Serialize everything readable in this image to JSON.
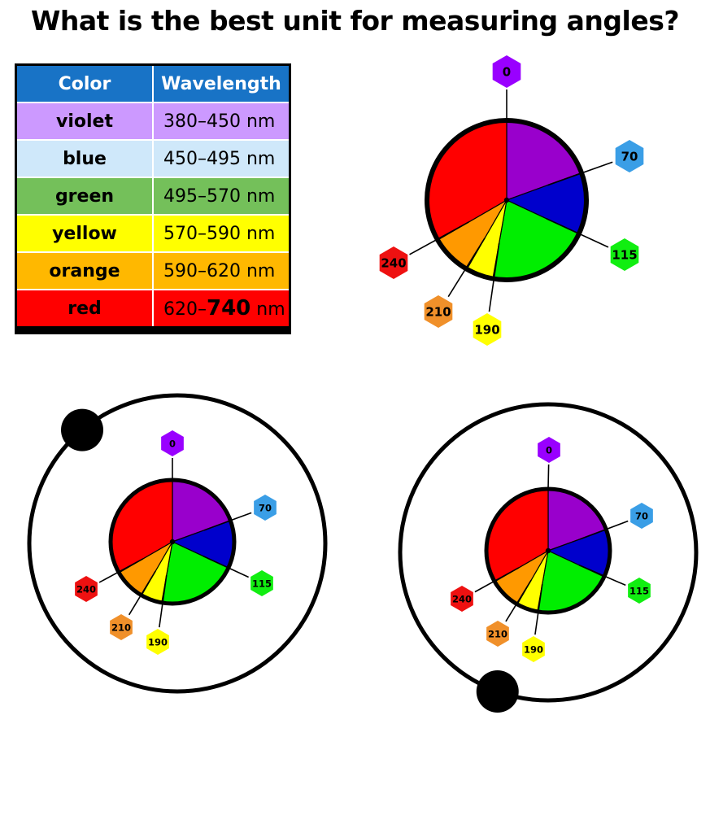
{
  "title": "What is the best unit for measuring angles?",
  "table": {
    "headers": [
      "Color",
      "Wavelength"
    ],
    "rows": [
      {
        "color": "violet",
        "wave": "380–450",
        "wave_end": "",
        "unit": " nm",
        "bg": "#cc99ff"
      },
      {
        "color": "blue",
        "wave": "450–495",
        "wave_end": "",
        "unit": " nm",
        "bg": "#cfe8fa"
      },
      {
        "color": "green",
        "wave": "495–570",
        "wave_end": "",
        "unit": " nm",
        "bg": "#74c05a"
      },
      {
        "color": "yellow",
        "wave": "570–590",
        "wave_end": "",
        "unit": " nm",
        "bg": "#ffff00"
      },
      {
        "color": "orange",
        "wave": "590–620",
        "wave_end": "",
        "unit": " nm",
        "bg": "#ffb800"
      },
      {
        "color": "red",
        "wave": "620–",
        "wave_end": "740",
        "unit": " nm",
        "bg": "#ff0000"
      }
    ]
  },
  "wheel": {
    "sectors": [
      {
        "name": "violet",
        "label": "0",
        "color": "#9900cc",
        "start": 0,
        "end": 70
      },
      {
        "name": "blue",
        "label": "70",
        "color": "#0000cc",
        "start": 70,
        "end": 115
      },
      {
        "name": "green",
        "label": "115",
        "color": "#00ee00",
        "start": 115,
        "end": 190
      },
      {
        "name": "yellow",
        "label": "190",
        "color": "#ffff00",
        "start": 190,
        "end": 210
      },
      {
        "name": "orange",
        "label": "210",
        "color": "#ff9900",
        "start": 210,
        "end": 240
      },
      {
        "name": "red",
        "label": "240",
        "color": "#ff0000",
        "start": 240,
        "end": 360
      }
    ],
    "hex_colors": {
      "0": "#9900ff",
      "70": "#3a9ee6",
      "115": "#11ee11",
      "190": "#ffff00",
      "210": "#f0902a",
      "240": "#ee1111"
    }
  },
  "orbits": [
    {
      "name": "left",
      "dot_angle": 320
    },
    {
      "name": "right",
      "dot_angle": 200
    }
  ]
}
